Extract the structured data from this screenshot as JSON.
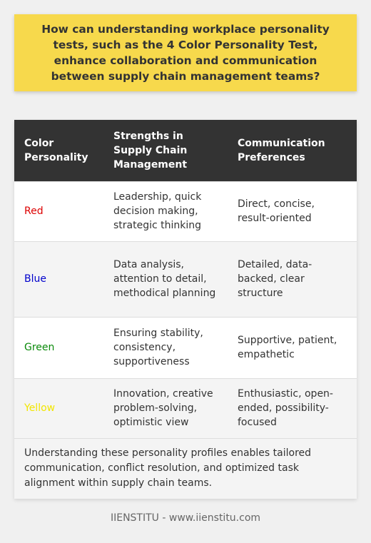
{
  "question": "How can understanding workplace personality tests, such as the 4 Color Personality Test, enhance collaboration and communication between supply chain management teams?",
  "table": {
    "headers": [
      "Color Personality",
      "Strengths in Supply Chain Management",
      "Communication Preferences"
    ],
    "rows": [
      {
        "color": "Red",
        "color_hex": "#dd0000",
        "strengths": "Leadership, quick decision making, strategic thinking",
        "communication": "Direct, concise, result-oriented"
      },
      {
        "color": "Blue",
        "color_hex": "#0000cc",
        "strengths": "Data analysis, attention to detail, methodical planning",
        "communication": "Detailed, data-backed, clear structure"
      },
      {
        "color": "Green",
        "color_hex": "#0a8a0a",
        "strengths": "Ensuring stability, consistency, supportiveness",
        "communication": "Supportive, patient, empathetic"
      },
      {
        "color": "Yellow",
        "color_hex": "#f2e600",
        "strengths": "Innovation, creative problem-solving, optimistic view",
        "communication": "Enthusiastic, open-ended, possibility-focused"
      }
    ],
    "summary": "Understanding these personality profiles enables tailored communication, conflict resolution, and optimized task alignment within supply chain teams."
  },
  "footer": "IIENSTITU - www.iienstitu.com",
  "colors": {
    "question_bg": "#f7d94c",
    "header_bg": "#333333",
    "page_bg": "#f0f0f0"
  }
}
